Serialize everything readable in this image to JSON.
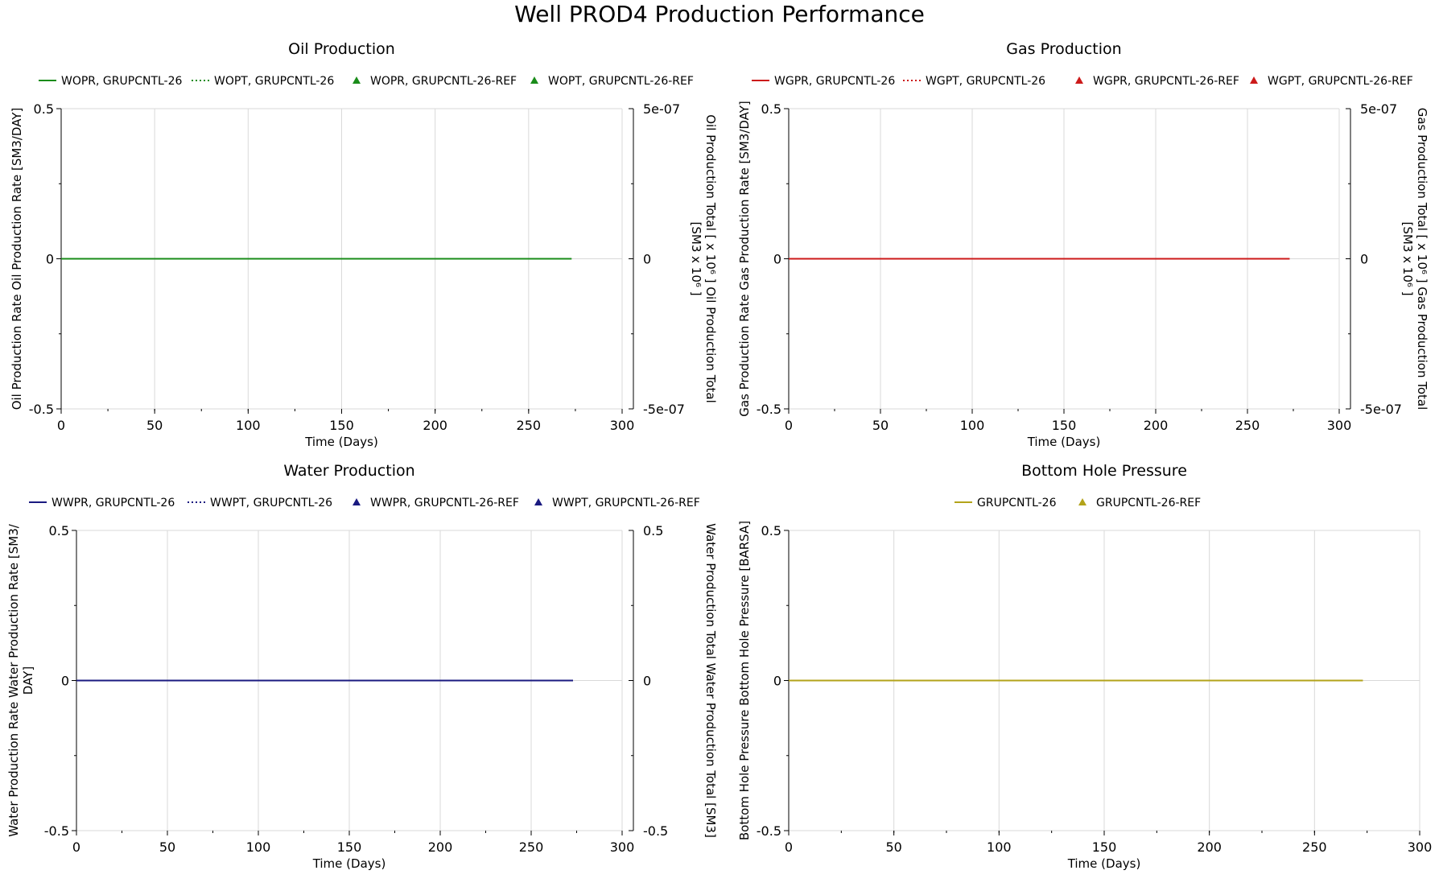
{
  "title": "Well PROD4 Production Performance",
  "chart_data": [
    {
      "type": "line",
      "title": "Oil Production",
      "xlabel": "Time (Days)",
      "ylabel": "Oil Production Rate Oil Production Rate [SM3/DAY]",
      "y2label_lines": [
        "Oil Production Total [ x 10⁶ ] Oil Production Total",
        "[SM3 x 10⁶ ]"
      ],
      "xlim": [
        0,
        300
      ],
      "ylim": [
        -0.5,
        0.5
      ],
      "y2lim": [
        -5e-07,
        5e-07
      ],
      "xticks": [
        "0",
        "50",
        "100",
        "150",
        "200",
        "250",
        "300"
      ],
      "yticks": [
        "-0.5",
        "0",
        "0.5"
      ],
      "y2ticks": [
        "-5e-07",
        "0",
        "5e-07"
      ],
      "grid": true,
      "legend": "top",
      "legend_entries": [
        {
          "label": "WOPR, GRUPCNTL-26",
          "style": "solid"
        },
        {
          "label": "WOPT, GRUPCNTL-26",
          "style": "dotted"
        },
        {
          "label": "WOPR, GRUPCNTL-26-REF",
          "style": "triangle"
        },
        {
          "label": "WOPT, GRUPCNTL-26-REF",
          "style": "triangle"
        }
      ],
      "color": "#1a8c1a",
      "series": [
        {
          "name": "WOPR, GRUPCNTL-26",
          "x": [
            0,
            273
          ],
          "y": [
            0,
            0
          ],
          "style": "solid",
          "axis": "left"
        },
        {
          "name": "WOPT, GRUPCNTL-26",
          "x": [
            0,
            273
          ],
          "y": [
            0,
            0
          ],
          "style": "dotted",
          "axis": "right"
        }
      ]
    },
    {
      "type": "line",
      "title": "Gas Production",
      "xlabel": "Time (Days)",
      "ylabel": "Gas Production Rate Gas Production Rate [SM3/DAY]",
      "y2label_lines": [
        "Gas Production Total [ x 10⁶ ] Gas Production Total",
        "[SM3 x 10⁶ ]"
      ],
      "xlim": [
        0,
        300
      ],
      "ylim": [
        -0.5,
        0.5
      ],
      "y2lim": [
        -5e-07,
        5e-07
      ],
      "xticks": [
        "0",
        "50",
        "100",
        "150",
        "200",
        "250",
        "300"
      ],
      "yticks": [
        "-0.5",
        "0",
        "0.5"
      ],
      "y2ticks": [
        "-5e-07",
        "0",
        "5e-07"
      ],
      "grid": true,
      "legend": "top",
      "legend_entries": [
        {
          "label": "WGPR, GRUPCNTL-26",
          "style": "solid"
        },
        {
          "label": "WGPT, GRUPCNTL-26",
          "style": "dotted"
        },
        {
          "label": "WGPR, GRUPCNTL-26-REF",
          "style": "triangle"
        },
        {
          "label": "WGPT, GRUPCNTL-26-REF",
          "style": "triangle"
        }
      ],
      "color": "#cc1a1a",
      "series": [
        {
          "name": "WGPR, GRUPCNTL-26",
          "x": [
            0,
            273
          ],
          "y": [
            0,
            0
          ],
          "style": "solid",
          "axis": "left"
        },
        {
          "name": "WGPT, GRUPCNTL-26",
          "x": [
            0,
            273
          ],
          "y": [
            0,
            0
          ],
          "style": "dotted",
          "axis": "right"
        }
      ]
    },
    {
      "type": "line",
      "title": "Water Production",
      "xlabel": "Time (Days)",
      "ylabel_lines": [
        "Water Production Rate Water Production Rate [SM3/",
        "DAY]"
      ],
      "y2label": "Water Production Total Water Production Total [SM3]",
      "xlim": [
        0,
        300
      ],
      "ylim": [
        -0.5,
        0.5
      ],
      "y2lim": [
        -0.5,
        0.5
      ],
      "xticks": [
        "0",
        "50",
        "100",
        "150",
        "200",
        "250",
        "300"
      ],
      "yticks": [
        "-0.5",
        "0",
        "0.5"
      ],
      "y2ticks": [
        "-0.5",
        "0",
        "0.5"
      ],
      "grid": true,
      "legend": "top",
      "legend_entries": [
        {
          "label": "WWPR, GRUPCNTL-26",
          "style": "solid"
        },
        {
          "label": "WWPT, GRUPCNTL-26",
          "style": "dotted"
        },
        {
          "label": "WWPR, GRUPCNTL-26-REF",
          "style": "triangle"
        },
        {
          "label": "WWPT, GRUPCNTL-26-REF",
          "style": "triangle"
        }
      ],
      "color": "#1a1a80",
      "series": [
        {
          "name": "WWPR, GRUPCNTL-26",
          "x": [
            0,
            273
          ],
          "y": [
            0,
            0
          ],
          "style": "solid",
          "axis": "left"
        },
        {
          "name": "WWPT, GRUPCNTL-26",
          "x": [
            0,
            273
          ],
          "y": [
            0,
            0
          ],
          "style": "dotted",
          "axis": "right"
        }
      ]
    },
    {
      "type": "line",
      "title": "Bottom Hole Pressure",
      "xlabel": "Time (Days)",
      "ylabel": "Bottom Hole Pressure Bottom Hole Pressure [BARSA]",
      "xlim": [
        0,
        300
      ],
      "ylim": [
        -0.5,
        0.5
      ],
      "xticks": [
        "0",
        "50",
        "100",
        "150",
        "200",
        "250",
        "300"
      ],
      "yticks": [
        "-0.5",
        "0",
        "0.5"
      ],
      "grid": true,
      "legend": "top",
      "legend_entries": [
        {
          "label": "GRUPCNTL-26",
          "style": "solid"
        },
        {
          "label": "GRUPCNTL-26-REF",
          "style": "triangle"
        }
      ],
      "color": "#b3a31a",
      "series": [
        {
          "name": "GRUPCNTL-26",
          "x": [
            0,
            273
          ],
          "y": [
            0,
            0
          ],
          "style": "solid",
          "axis": "left"
        }
      ]
    }
  ]
}
